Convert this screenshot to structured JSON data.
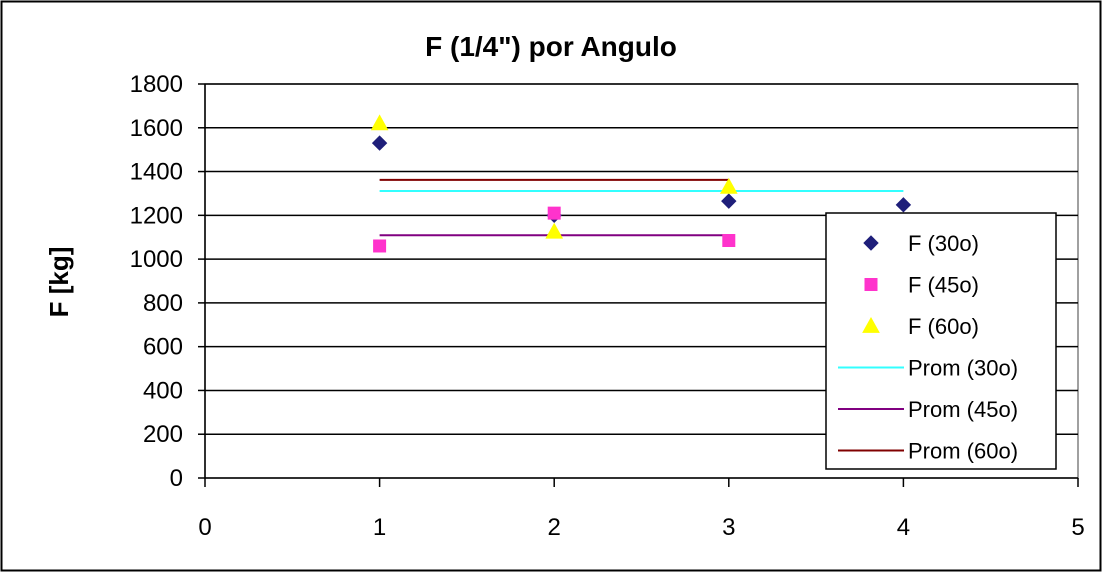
{
  "chart_data": {
    "type": "scatter",
    "title": "F (1/4\") por Angulo",
    "xlabel": "",
    "ylabel": "F [kg]",
    "xlim": [
      0,
      5
    ],
    "ylim": [
      0,
      1800
    ],
    "x_ticks": [
      "0",
      "1",
      "2",
      "3",
      "4",
      "5"
    ],
    "y_ticks": [
      "0",
      "200",
      "400",
      "600",
      "800",
      "1000",
      "1200",
      "1400",
      "1600",
      "1800"
    ],
    "grid": "horizontal",
    "legend_position": "right",
    "series": [
      {
        "name": "F (30o)",
        "kind": "marker",
        "marker": "diamond",
        "color": "#1f1f7a",
        "points": [
          [
            1,
            1530
          ],
          [
            2,
            1200
          ],
          [
            3,
            1265
          ],
          [
            4,
            1248
          ]
        ]
      },
      {
        "name": "F (45o)",
        "kind": "marker",
        "marker": "square",
        "color": "#ff33cc",
        "points": [
          [
            1,
            1060
          ],
          [
            2,
            1210
          ],
          [
            3,
            1085
          ]
        ]
      },
      {
        "name": "F (60o)",
        "kind": "marker",
        "marker": "triangle",
        "color": "#ffff00",
        "points": [
          [
            1,
            1620
          ],
          [
            2,
            1125
          ],
          [
            3,
            1330
          ]
        ]
      },
      {
        "name": "Prom (30o)",
        "kind": "line",
        "color": "#33ffff",
        "points": [
          [
            1,
            1311
          ],
          [
            4,
            1311
          ]
        ]
      },
      {
        "name": "Prom (45o)",
        "kind": "line",
        "color": "#800080",
        "points": [
          [
            1,
            1109
          ],
          [
            3,
            1109
          ]
        ]
      },
      {
        "name": "Prom (60o)",
        "kind": "line",
        "color": "#800000",
        "points": [
          [
            1,
            1362
          ],
          [
            3,
            1362
          ]
        ]
      }
    ]
  }
}
